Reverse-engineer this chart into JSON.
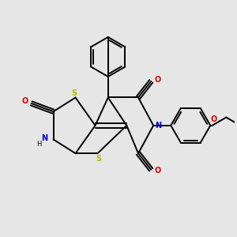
{
  "background_color": "#e6e6e6",
  "bond_color": "#000000",
  "S_color": "#b8b800",
  "N_color": "#0000cc",
  "O_color": "#dd0000",
  "figsize": [
    3.0,
    3.0
  ],
  "dpi": 100,
  "xlim": [
    0,
    10
  ],
  "ylim": [
    0,
    10
  ]
}
